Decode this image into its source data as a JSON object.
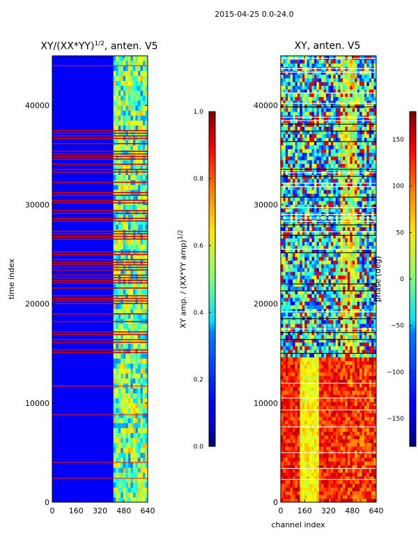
{
  "suptitle": "2015-04-25 0.0-24.0",
  "chart_data": [
    {
      "type": "heatmap",
      "title": "XY/(XX*YY)",
      "title_exponent": "1/2",
      "title_suffix": ", anten. V5",
      "xlabel": "",
      "ylabel": "time index",
      "xlim": [
        0,
        640
      ],
      "ylim": [
        0,
        45000
      ],
      "xticks": [
        0,
        160,
        320,
        480,
        640
      ],
      "yticks": [
        0,
        10000,
        20000,
        30000,
        40000
      ],
      "colorbar": {
        "label": "XY amp. / (XX*YY amp)",
        "label_exponent": "1/2",
        "range": [
          0.0,
          1.0
        ],
        "ticks": [
          "0.0",
          "0.2",
          "0.4",
          "0.6",
          "0.8",
          "1.0"
        ],
        "colormap": "jet"
      },
      "description_bands": [
        {
          "x_start": 420,
          "x_end": 640,
          "level": 0.55
        },
        {
          "y_start": 14800,
          "y_end": 37500,
          "level": 0.9,
          "mode": "horizontal-stripes"
        }
      ]
    },
    {
      "type": "heatmap",
      "title": "XY, anten. V5",
      "xlabel": "channel index",
      "ylabel": "",
      "xlim": [
        0,
        640
      ],
      "ylim": [
        0,
        45000
      ],
      "xticks": [
        0,
        160,
        320,
        480,
        640
      ],
      "yticks": [
        0,
        10000,
        20000,
        30000,
        40000
      ],
      "colorbar": {
        "label": "phase (deg)",
        "range": [
          -180,
          180
        ],
        "ticks": [
          "−150",
          "−100",
          "−50",
          "0",
          "50",
          "100",
          "150"
        ],
        "colormap": "jet"
      }
    }
  ]
}
